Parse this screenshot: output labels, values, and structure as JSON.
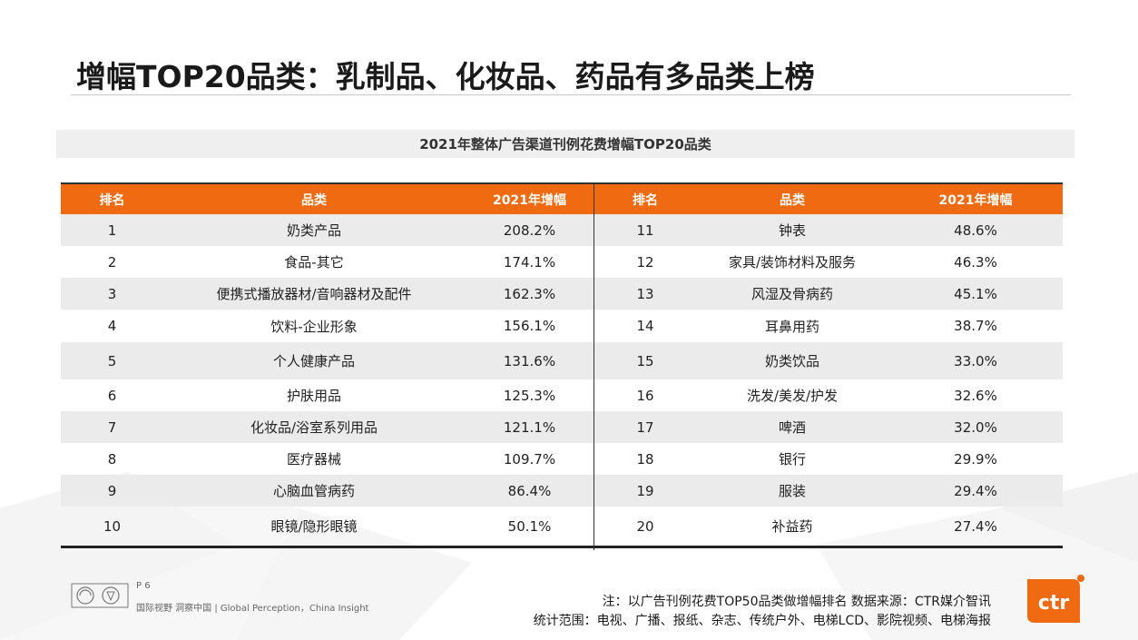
{
  "title": "增幅TOP20品类：乳制品、化妆品、药品有多品类上榜",
  "subtitle": "2021年整体广告渠道刊例花费增幅TOP20品类",
  "table": {
    "headers": [
      "排名",
      "品类",
      "2021年增幅",
      "排名",
      "品类",
      "2021年增幅"
    ],
    "rows": [
      {
        "l_rank": "1",
        "l_cat": "奶类产品",
        "l_growth": "208.2%",
        "r_rank": "11",
        "r_cat": "钟表",
        "r_growth": "48.6%"
      },
      {
        "l_rank": "2",
        "l_cat": "食品-其它",
        "l_growth": "174.1%",
        "r_rank": "12",
        "r_cat": "家具/装饰材料及服务",
        "r_growth": "46.3%"
      },
      {
        "l_rank": "3",
        "l_cat": "便携式播放器材/音响器材及配件",
        "l_growth": "162.3%",
        "r_rank": "13",
        "r_cat": "风湿及骨病药",
        "r_growth": "45.1%"
      },
      {
        "l_rank": "4",
        "l_cat": "饮料-企业形象",
        "l_growth": "156.1%",
        "r_rank": "14",
        "r_cat": "耳鼻用药",
        "r_growth": "38.7%"
      },
      {
        "l_rank": "5",
        "l_cat": "个人健康产品",
        "l_growth": "131.6%",
        "r_rank": "15",
        "r_cat": "奶类饮品",
        "r_growth": "33.0%"
      },
      {
        "l_rank": "6",
        "l_cat": "护肤用品",
        "l_growth": "125.3%",
        "r_rank": "16",
        "r_cat": "洗发/美发/护发",
        "r_growth": "32.6%"
      },
      {
        "l_rank": "7",
        "l_cat": "化妆品/浴室系列用品",
        "l_growth": "121.1%",
        "r_rank": "17",
        "r_cat": "啤酒",
        "r_growth": "32.0%"
      },
      {
        "l_rank": "8",
        "l_cat": "医疗器械",
        "l_growth": "109.7%",
        "r_rank": "18",
        "r_cat": "银行",
        "r_growth": "29.9%"
      },
      {
        "l_rank": "9",
        "l_cat": "心脑血管病药",
        "l_growth": "86.4%",
        "r_rank": "19",
        "r_cat": "服装",
        "r_growth": "29.4%"
      },
      {
        "l_rank": "10",
        "l_cat": "眼镜/隐形眼镜",
        "l_growth": "50.1%",
        "r_rank": "20",
        "r_cat": "补益药",
        "r_growth": "27.4%"
      }
    ]
  },
  "note_line1": "注：以广告刊例花费TOP50品类做增幅排名   数据来源：CTR媒介智讯",
  "note_line2": "统计范围：电视、广播、报纸、杂志、传统户外、电梯LCD、影院视频、电梯海报",
  "footer": {
    "page": "P 6",
    "slogan": "国际视野 洞察中国 | Global Perception，China Insight"
  },
  "logo_text": "ctr",
  "colors": {
    "accent": "#f06a12",
    "header_text": "#ffffff",
    "shade": "#ebebeb"
  }
}
